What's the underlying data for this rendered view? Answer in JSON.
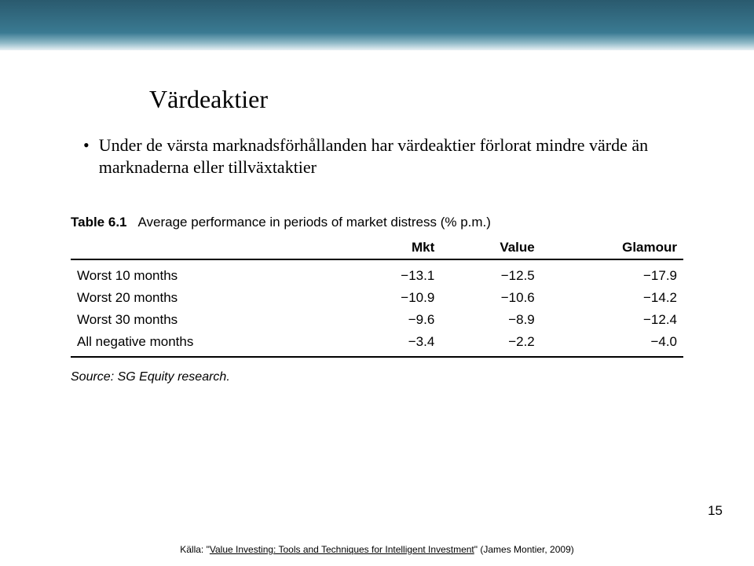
{
  "title": "Värdeaktier",
  "bullet": "Under de värsta marknadsförhållanden har värdeaktier förlorat mindre värde än marknaderna eller tillväxtaktier",
  "table": {
    "caption_label": "Table 6.1",
    "caption_text": "Average performance in periods of market distress (% p.m.)",
    "columns": [
      "",
      "Mkt",
      "Value",
      "Glamour"
    ],
    "rows": [
      [
        "Worst 10 months",
        "−13.1",
        "−12.5",
        "−17.9"
      ],
      [
        "Worst 20 months",
        "−10.9",
        "−10.6",
        "−14.2"
      ],
      [
        "Worst 30 months",
        "−9.6",
        "−8.9",
        "−12.4"
      ],
      [
        "All negative months",
        "−3.4",
        "−2.2",
        "−4.0"
      ]
    ],
    "source": "Source: SG Equity research."
  },
  "page_number": "15",
  "footer": {
    "prefix": "Källa: ",
    "quote_open": "\"",
    "linked_title": "Value Investing: Tools and Techniques for Intelligent Investment",
    "suffix": "\" (James Montier, 2009)"
  }
}
